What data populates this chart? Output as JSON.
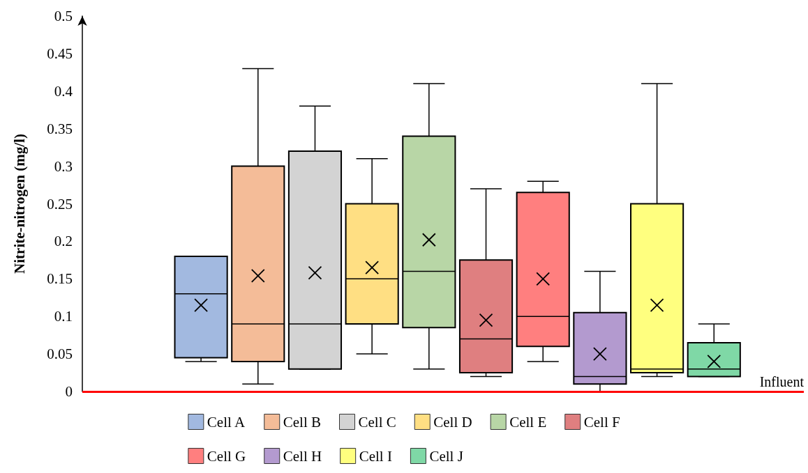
{
  "chart_data": {
    "type": "box",
    "ylabel": "Nitrite-nitrogen (mg/l)",
    "categories": [
      null
    ],
    "ylim": [
      0,
      0.5
    ],
    "yticks": [
      0,
      0.05,
      0.1,
      0.15,
      0.2,
      0.25,
      0.3,
      0.35,
      0.4,
      0.45,
      0.5
    ],
    "grid": false,
    "legend": "bottom",
    "marker": "cross",
    "ref_lines": [
      {
        "axis": "y",
        "value": 0,
        "label": "Influent",
        "color": "#ff0000"
      }
    ],
    "series": [
      {
        "name": "Cell A",
        "color": "#a2b9e0",
        "boxes": [
          {
            "low": 0.04,
            "q1": 0.045,
            "median": 0.13,
            "q3": 0.18,
            "high": 0.18,
            "mean": 0.115
          }
        ]
      },
      {
        "name": "Cell B",
        "color": "#f4bc98",
        "boxes": [
          {
            "low": 0.01,
            "q1": 0.04,
            "median": 0.09,
            "q3": 0.3,
            "high": 0.43,
            "mean": 0.154
          }
        ]
      },
      {
        "name": "Cell C",
        "color": "#d3d3d3",
        "boxes": [
          {
            "low": 0.03,
            "q1": 0.03,
            "median": 0.09,
            "q3": 0.32,
            "high": 0.38,
            "mean": 0.158
          }
        ]
      },
      {
        "name": "Cell D",
        "color": "#ffdf83",
        "boxes": [
          {
            "low": 0.05,
            "q1": 0.09,
            "median": 0.15,
            "q3": 0.25,
            "high": 0.31,
            "mean": 0.165
          }
        ]
      },
      {
        "name": "Cell E",
        "color": "#b8d6a6",
        "boxes": [
          {
            "low": 0.03,
            "q1": 0.085,
            "median": 0.16,
            "q3": 0.34,
            "high": 0.41,
            "mean": 0.202
          }
        ]
      },
      {
        "name": "Cell F",
        "color": "#df7f80",
        "boxes": [
          {
            "low": 0.02,
            "q1": 0.025,
            "median": 0.07,
            "q3": 0.175,
            "high": 0.27,
            "mean": 0.095
          }
        ]
      },
      {
        "name": "Cell G",
        "color": "#ff7f7f",
        "boxes": [
          {
            "low": 0.04,
            "q1": 0.06,
            "median": 0.1,
            "q3": 0.265,
            "high": 0.28,
            "mean": 0.15
          }
        ]
      },
      {
        "name": "Cell H",
        "color": "#b39acf",
        "boxes": [
          {
            "low": 0,
            "q1": 0.01,
            "median": 0.02,
            "q3": 0.105,
            "high": 0.16,
            "mean": 0.05
          }
        ]
      },
      {
        "name": "Cell I",
        "color": "#ffff7f",
        "boxes": [
          {
            "low": 0.02,
            "q1": 0.025,
            "median": 0.03,
            "q3": 0.25,
            "high": 0.41,
            "mean": 0.115
          }
        ]
      },
      {
        "name": "Cell J",
        "color": "#7fd8a6",
        "boxes": [
          {
            "low": 0.02,
            "q1": 0.02,
            "median": 0.03,
            "q3": 0.065,
            "high": 0.09,
            "mean": 0.04
          }
        ]
      }
    ]
  }
}
